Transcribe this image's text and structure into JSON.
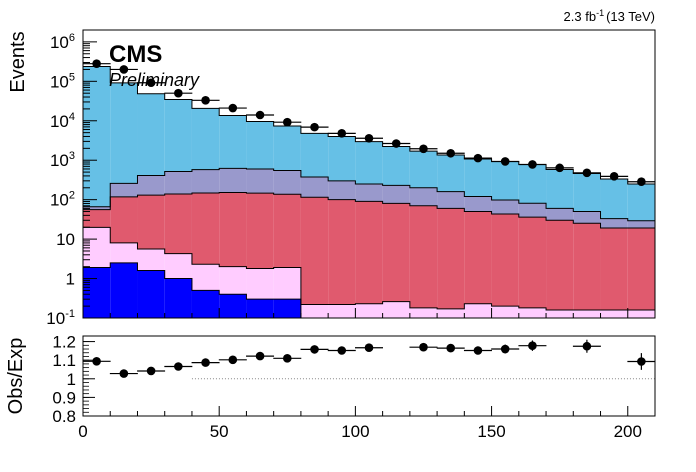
{
  "header": {
    "lumi_value": "2.3 fb",
    "lumi_exponent": "-1",
    "lumi_energy": "(13 TeV)",
    "experiment": "CMS",
    "status": "Preliminary"
  },
  "chart_data": [
    {
      "type": "bar",
      "stacked": true,
      "log_y": true,
      "ylabel": "Events",
      "xlim": [
        0,
        210
      ],
      "ylim": [
        0.1,
        2000000
      ],
      "y_ticks": [
        {
          "v": 0.1,
          "mant": "10",
          "exp": "-1"
        },
        {
          "v": 1,
          "mant": "1",
          "exp": ""
        },
        {
          "v": 10,
          "mant": "10",
          "exp": ""
        },
        {
          "v": 100,
          "mant": "10",
          "exp": "2"
        },
        {
          "v": 1000,
          "mant": "10",
          "exp": "3"
        },
        {
          "v": 10000,
          "mant": "10",
          "exp": "4"
        },
        {
          "v": 100000,
          "mant": "10",
          "exp": "5"
        },
        {
          "v": 1000000,
          "mant": "10",
          "exp": "6"
        }
      ],
      "bin_edges": [
        0,
        10,
        20,
        30,
        40,
        50,
        60,
        70,
        80,
        90,
        100,
        110,
        120,
        130,
        140,
        150,
        160,
        170,
        180,
        190,
        200,
        210
      ],
      "series": [
        {
          "color": "#0000ff",
          "values": [
            1.9,
            2.5,
            1.6,
            1.0,
            0.5,
            0.4,
            0.3,
            0.3,
            0.08,
            0.08,
            0.08,
            0.08,
            0.08,
            0.08,
            0.08,
            0.08,
            0.08,
            0.08,
            0.08,
            0.08,
            0.08
          ]
        },
        {
          "color": "#ffccff",
          "values": [
            18,
            5.5,
            4.0,
            3.3,
            1.8,
            1.6,
            1.5,
            1.6,
            0.14,
            0.14,
            0.15,
            0.18,
            0.1,
            0.09,
            0.15,
            0.12,
            0.1,
            0.08,
            0.08,
            0.08,
            0.08
          ]
        },
        {
          "color": "#e05a6e",
          "values": [
            36,
            110,
            125,
            135,
            145,
            150,
            145,
            135,
            115,
            100,
            90,
            80,
            70,
            60,
            50,
            43,
            36,
            30,
            25,
            19,
            19
          ]
        },
        {
          "color": "#9999cc",
          "values": [
            10,
            140,
            280,
            380,
            430,
            470,
            450,
            410,
            260,
            200,
            160,
            150,
            130,
            100,
            70,
            55,
            45,
            30,
            25,
            14,
            10
          ]
        },
        {
          "color": "#66c0e6",
          "values": [
            237000,
            91000,
            48000,
            34000,
            20000,
            13000,
            9000,
            6800,
            4400,
            3700,
            2700,
            2000,
            1500,
            1200,
            950,
            820,
            700,
            520,
            410,
            300,
            220
          ]
        }
      ],
      "observed": {
        "x": [
          5,
          15,
          25,
          35,
          45,
          55,
          65,
          75,
          85,
          95,
          105,
          115,
          125,
          135,
          145,
          155,
          165,
          175,
          185,
          195,
          205
        ],
        "y": [
          280000,
          200000,
          92000,
          50000,
          33000,
          21000,
          14000,
          9200,
          6900,
          4800,
          3600,
          2650,
          1950,
          1500,
          1130,
          930,
          780,
          640,
          480,
          390,
          285
        ]
      }
    },
    {
      "type": "scatter",
      "ylabel": "Obs/Exp",
      "xlabel": "",
      "xlim": [
        0,
        210
      ],
      "ylim": [
        0.8,
        1.23
      ],
      "x_ticks": [
        0,
        50,
        100,
        150,
        200
      ],
      "y_ticks": [
        "0.8",
        "0.9",
        "1",
        "1.1",
        "1.2"
      ],
      "reference_line": 1.0,
      "ratio": {
        "x": [
          5,
          15,
          25,
          35,
          45,
          55,
          65,
          75,
          85,
          95,
          105,
          125,
          135,
          145,
          155,
          165,
          185,
          205
        ],
        "y": [
          1.094,
          1.028,
          1.042,
          1.066,
          1.087,
          1.102,
          1.122,
          1.11,
          1.158,
          1.152,
          1.167,
          1.17,
          1.165,
          1.152,
          1.16,
          1.178,
          1.175,
          1.093
        ],
        "err": [
          0.003,
          0.003,
          0.004,
          0.004,
          0.005,
          0.007,
          0.009,
          0.01,
          0.012,
          0.012,
          0.015,
          0.02,
          0.022,
          0.022,
          0.024,
          0.028,
          0.035,
          0.045
        ]
      }
    }
  ]
}
